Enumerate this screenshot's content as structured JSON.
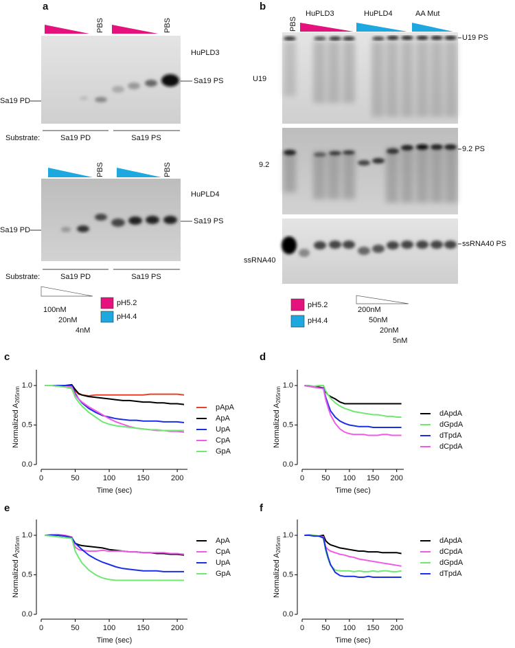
{
  "panel_a": {
    "label": "a",
    "top": {
      "pbs": [
        "PBS",
        "PBS"
      ],
      "enzyme": "HuPLD3",
      "product": "Sa19 PS",
      "substrate": "Sa19 PD",
      "substrate_label": "Substrate:",
      "groups": [
        "Sa19 PD",
        "Sa19 PS"
      ]
    },
    "bottom": {
      "pbs": [
        "PBS",
        "PBS"
      ],
      "enzyme": "HuPLD4",
      "product": "Sa19 PS",
      "substrate": "Sa19 PD",
      "substrate_label": "Substrate:",
      "groups": [
        "Sa19 PD",
        "Sa19 PS"
      ]
    },
    "legend": {
      "concentrations": [
        "100nM",
        "20nM",
        "4nM"
      ],
      "ph": [
        "pH5.2",
        "pH4.4"
      ]
    }
  },
  "panel_b": {
    "label": "b",
    "pbs": "PBS",
    "groups": [
      "HuPLD3",
      "HuPLD4",
      "AA Mut"
    ],
    "rows": [
      {
        "name": "U19",
        "product": "U19 PS"
      },
      {
        "name": "9.2",
        "product": "9.2 PS"
      },
      {
        "name": "ssRNA40",
        "product": "ssRNA40 PS"
      }
    ],
    "legend": {
      "ph": [
        "pH5.2",
        "pH4.4"
      ],
      "concentrations": [
        "200nM",
        "50nM",
        "20nM",
        "5nM"
      ]
    }
  },
  "chart_data": [
    {
      "type": "line",
      "panel": "c",
      "xlabel": "Time (sec)",
      "ylabel": "Normalized A",
      "ylabel_sub": "265nm",
      "xlim": [
        0,
        215
      ],
      "ylim": [
        0,
        1.2
      ],
      "xticks": [
        0,
        50,
        100,
        150,
        200
      ],
      "yticks": [
        {
          "value": 0,
          "label": "0.0"
        },
        {
          "value": 0.5,
          "label": "0.5"
        },
        {
          "value": 1,
          "label": "1.0"
        }
      ],
      "legend": "right",
      "x": [
        5,
        15,
        25,
        35,
        45,
        50,
        55,
        60,
        70,
        80,
        90,
        100,
        110,
        120,
        130,
        140,
        150,
        160,
        170,
        180,
        190,
        200,
        210
      ],
      "series": [
        {
          "name": "pApA",
          "color": "#e8402a",
          "values": [
            1.0,
            1.0,
            1.0,
            1.0,
            1.0,
            0.93,
            0.89,
            0.88,
            0.87,
            0.88,
            0.88,
            0.88,
            0.88,
            0.88,
            0.88,
            0.88,
            0.88,
            0.89,
            0.89,
            0.89,
            0.89,
            0.89,
            0.88
          ]
        },
        {
          "name": "ApA",
          "color": "#000000",
          "values": [
            1.0,
            1.0,
            1.0,
            1.0,
            1.01,
            0.95,
            0.9,
            0.88,
            0.86,
            0.85,
            0.84,
            0.83,
            0.82,
            0.81,
            0.81,
            0.8,
            0.79,
            0.79,
            0.78,
            0.78,
            0.77,
            0.77,
            0.76
          ]
        },
        {
          "name": "UpA",
          "color": "#1a2ee8",
          "values": [
            1.0,
            1.0,
            1.0,
            1.0,
            1.0,
            0.9,
            0.83,
            0.78,
            0.71,
            0.66,
            0.62,
            0.6,
            0.58,
            0.57,
            0.56,
            0.56,
            0.55,
            0.55,
            0.55,
            0.54,
            0.54,
            0.54,
            0.53
          ]
        },
        {
          "name": "CpA",
          "color": "#f05ae8",
          "values": [
            1.0,
            1.0,
            0.99,
            0.98,
            0.98,
            0.88,
            0.83,
            0.79,
            0.73,
            0.68,
            0.63,
            0.58,
            0.54,
            0.51,
            0.48,
            0.46,
            0.45,
            0.44,
            0.43,
            0.43,
            0.42,
            0.42,
            0.41
          ]
        },
        {
          "name": "GpA",
          "color": "#6fe86f",
          "values": [
            1.0,
            1.0,
            0.99,
            0.98,
            0.96,
            0.85,
            0.79,
            0.74,
            0.66,
            0.6,
            0.54,
            0.51,
            0.49,
            0.48,
            0.47,
            0.46,
            0.45,
            0.44,
            0.44,
            0.43,
            0.43,
            0.43,
            0.43
          ]
        }
      ]
    },
    {
      "type": "line",
      "panel": "d",
      "xlabel": "Time (sec)",
      "ylabel": "Normalized A",
      "ylabel_sub": "265nm",
      "xlim": [
        0,
        215
      ],
      "ylim": [
        0,
        1.2
      ],
      "xticks": [
        0,
        50,
        100,
        150,
        200
      ],
      "yticks": [
        {
          "value": 0,
          "label": "0.0"
        },
        {
          "value": 0.5,
          "label": "0.5"
        },
        {
          "value": 1,
          "label": "1.0"
        }
      ],
      "legend": "right",
      "x": [
        5,
        15,
        25,
        35,
        45,
        50,
        55,
        60,
        70,
        80,
        90,
        100,
        110,
        120,
        130,
        140,
        150,
        160,
        170,
        180,
        190,
        200,
        210
      ],
      "series": [
        {
          "name": "dApdA",
          "color": "#000000",
          "values": [
            1.0,
            0.99,
            0.98,
            0.98,
            0.97,
            0.92,
            0.88,
            0.86,
            0.83,
            0.79,
            0.77,
            0.77,
            0.77,
            0.77,
            0.77,
            0.77,
            0.77,
            0.77,
            0.77,
            0.77,
            0.77,
            0.77,
            0.77
          ]
        },
        {
          "name": "dGpdA",
          "color": "#6fe86f",
          "values": [
            1.0,
            1.0,
            0.99,
            1.0,
            1.0,
            0.93,
            0.88,
            0.84,
            0.78,
            0.74,
            0.71,
            0.69,
            0.67,
            0.66,
            0.65,
            0.64,
            0.63,
            0.63,
            0.62,
            0.61,
            0.61,
            0.6,
            0.6
          ]
        },
        {
          "name": "dTpdA",
          "color": "#1a2ee8",
          "values": [
            1.0,
            0.99,
            0.98,
            0.97,
            0.97,
            0.85,
            0.76,
            0.68,
            0.6,
            0.55,
            0.52,
            0.5,
            0.49,
            0.48,
            0.48,
            0.48,
            0.47,
            0.47,
            0.47,
            0.47,
            0.47,
            0.47,
            0.47
          ]
        },
        {
          "name": "dCpdA",
          "color": "#f05ae8",
          "values": [
            1.0,
            0.99,
            0.98,
            0.97,
            0.96,
            0.82,
            0.72,
            0.63,
            0.52,
            0.45,
            0.41,
            0.39,
            0.38,
            0.38,
            0.38,
            0.37,
            0.37,
            0.37,
            0.38,
            0.38,
            0.37,
            0.37,
            0.37
          ]
        }
      ]
    },
    {
      "type": "line",
      "panel": "e",
      "xlabel": "Time (sec)",
      "ylabel": "Normalized A",
      "ylabel_sub": "265nm",
      "xlim": [
        0,
        215
      ],
      "ylim": [
        0,
        1.2
      ],
      "xticks": [
        0,
        50,
        100,
        150,
        200
      ],
      "yticks": [
        {
          "value": 0,
          "label": "0.0"
        },
        {
          "value": 0.5,
          "label": "0.5"
        },
        {
          "value": 1,
          "label": "1.0"
        }
      ],
      "legend": "right",
      "x": [
        5,
        15,
        25,
        35,
        45,
        50,
        55,
        60,
        70,
        80,
        90,
        100,
        110,
        120,
        130,
        140,
        150,
        160,
        170,
        180,
        190,
        200,
        210
      ],
      "series": [
        {
          "name": "ApA",
          "color": "#000000",
          "values": [
            1.0,
            1.0,
            1.0,
            0.99,
            0.97,
            0.9,
            0.88,
            0.87,
            0.86,
            0.85,
            0.84,
            0.82,
            0.81,
            0.8,
            0.79,
            0.79,
            0.78,
            0.78,
            0.77,
            0.77,
            0.76,
            0.76,
            0.75
          ]
        },
        {
          "name": "CpA",
          "color": "#f05ae8",
          "values": [
            1.0,
            1.01,
            1.01,
            1.0,
            0.98,
            0.85,
            0.82,
            0.81,
            0.8,
            0.8,
            0.81,
            0.8,
            0.8,
            0.8,
            0.79,
            0.79,
            0.78,
            0.78,
            0.78,
            0.78,
            0.77,
            0.77,
            0.76
          ]
        },
        {
          "name": "UpA",
          "color": "#1a2ee8",
          "values": [
            1.0,
            1.0,
            1.0,
            0.99,
            0.97,
            0.9,
            0.86,
            0.82,
            0.75,
            0.7,
            0.66,
            0.63,
            0.6,
            0.58,
            0.57,
            0.56,
            0.55,
            0.55,
            0.55,
            0.54,
            0.54,
            0.54,
            0.54
          ]
        },
        {
          "name": "GpA",
          "color": "#6fe86f",
          "values": [
            1.0,
            0.99,
            0.98,
            0.97,
            0.96,
            0.8,
            0.72,
            0.65,
            0.56,
            0.5,
            0.46,
            0.44,
            0.43,
            0.43,
            0.43,
            0.43,
            0.43,
            0.43,
            0.43,
            0.43,
            0.43,
            0.43,
            0.43
          ]
        }
      ]
    },
    {
      "type": "line",
      "panel": "f",
      "xlabel": "Time (sec)",
      "ylabel": "Normalized A",
      "ylabel_sub": "265nm",
      "xlim": [
        0,
        215
      ],
      "ylim": [
        0,
        1.2
      ],
      "xticks": [
        0,
        50,
        100,
        150,
        200
      ],
      "yticks": [
        {
          "value": 0,
          "label": "0.0"
        },
        {
          "value": 0.5,
          "label": "0.5"
        },
        {
          "value": 1,
          "label": "1.0"
        }
      ],
      "legend": "right",
      "x": [
        5,
        15,
        25,
        35,
        45,
        50,
        55,
        60,
        70,
        80,
        90,
        100,
        110,
        120,
        130,
        140,
        150,
        160,
        170,
        180,
        190,
        200,
        210
      ],
      "series": [
        {
          "name": "dApdA",
          "color": "#000000",
          "values": [
            1.0,
            1.0,
            1.0,
            0.99,
            1.0,
            0.93,
            0.9,
            0.88,
            0.86,
            0.84,
            0.83,
            0.82,
            0.81,
            0.8,
            0.8,
            0.79,
            0.79,
            0.79,
            0.78,
            0.78,
            0.78,
            0.78,
            0.77
          ]
        },
        {
          "name": "dCpdA",
          "color": "#f05ae8",
          "values": [
            1.0,
            1.0,
            1.0,
            0.99,
            0.98,
            0.85,
            0.82,
            0.8,
            0.78,
            0.76,
            0.75,
            0.73,
            0.72,
            0.7,
            0.69,
            0.68,
            0.67,
            0.66,
            0.65,
            0.64,
            0.63,
            0.62,
            0.61
          ]
        },
        {
          "name": "dGpdA",
          "color": "#6fe86f",
          "values": [
            1.0,
            1.01,
            1.0,
            0.99,
            0.96,
            0.8,
            0.7,
            0.62,
            0.56,
            0.55,
            0.55,
            0.55,
            0.54,
            0.55,
            0.54,
            0.54,
            0.55,
            0.54,
            0.55,
            0.55,
            0.54,
            0.54,
            0.55
          ]
        },
        {
          "name": "dTpdA",
          "color": "#1a2ee8",
          "values": [
            1.0,
            1.0,
            0.99,
            0.99,
            0.97,
            0.83,
            0.72,
            0.63,
            0.53,
            0.49,
            0.48,
            0.48,
            0.48,
            0.47,
            0.47,
            0.48,
            0.47,
            0.47,
            0.47,
            0.47,
            0.47,
            0.47,
            0.47
          ]
        }
      ]
    }
  ]
}
